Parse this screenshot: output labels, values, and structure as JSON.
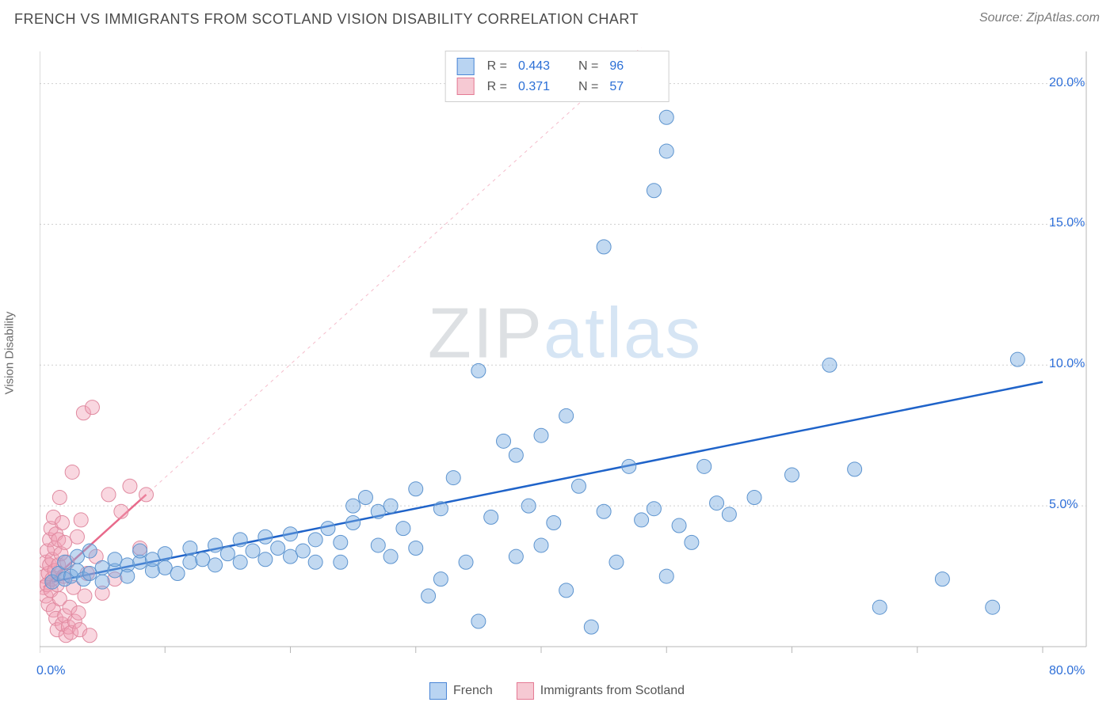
{
  "header": {
    "title": "FRENCH VS IMMIGRANTS FROM SCOTLAND VISION DISABILITY CORRELATION CHART",
    "source": "Source: ZipAtlas.com"
  },
  "axes": {
    "y_label": "Vision Disability",
    "x_min": 0,
    "x_max": 80,
    "y_min": 0,
    "y_max": 21,
    "y_ticks": [
      {
        "val": 5,
        "label": "5.0%"
      },
      {
        "val": 10,
        "label": "10.0%"
      },
      {
        "val": 15,
        "label": "15.0%"
      },
      {
        "val": 20,
        "label": "20.0%"
      }
    ],
    "x_ticks_major": [
      0,
      10,
      20,
      30,
      40,
      50,
      60,
      70,
      80
    ],
    "x_origin_label": "0.0%",
    "x_max_label": "80.0%",
    "grid_color": "#cfcfcf",
    "axis_color": "#b7b7b7",
    "background": "#ffffff"
  },
  "watermark": {
    "z": "Z",
    "ip": "IP",
    "atlas": "atlas"
  },
  "legend_top": {
    "rows": [
      {
        "swatch_fill": "#b9d4f2",
        "swatch_border": "#4a86d6",
        "r_label": "R =",
        "r": "0.443",
        "n_label": "N =",
        "n": "96"
      },
      {
        "swatch_fill": "#f6c9d3",
        "swatch_border": "#e47a94",
        "r_label": "R =",
        "r": "0.371",
        "n_label": "N =",
        "n": "57"
      }
    ]
  },
  "legend_bottom": {
    "items": [
      {
        "swatch_fill": "#b9d4f2",
        "swatch_border": "#4a86d6",
        "label": "French"
      },
      {
        "swatch_fill": "#f6c9d3",
        "swatch_border": "#e47a94",
        "label": "Immigrants from Scotland"
      }
    ]
  },
  "series": {
    "blue": {
      "color_fill": "rgba(120,170,225,0.45)",
      "color_stroke": "#5d94cf",
      "trend_color": "#1f63c9",
      "trend_dash_color": "#1f63c9",
      "trend_x1": 1,
      "trend_y1": 2.3,
      "trend_x2": 80,
      "trend_y2": 9.4,
      "points": [
        [
          1,
          2.3
        ],
        [
          1.5,
          2.6
        ],
        [
          2,
          2.4
        ],
        [
          2,
          3.0
        ],
        [
          2.5,
          2.5
        ],
        [
          3,
          2.7
        ],
        [
          3,
          3.2
        ],
        [
          3.5,
          2.4
        ],
        [
          4,
          2.6
        ],
        [
          4,
          3.4
        ],
        [
          5,
          2.8
        ],
        [
          5,
          2.3
        ],
        [
          6,
          2.7
        ],
        [
          6,
          3.1
        ],
        [
          7,
          2.9
        ],
        [
          7,
          2.5
        ],
        [
          8,
          3.0
        ],
        [
          8,
          3.4
        ],
        [
          9,
          2.7
        ],
        [
          9,
          3.1
        ],
        [
          10,
          2.8
        ],
        [
          10,
          3.3
        ],
        [
          11,
          2.6
        ],
        [
          12,
          3.0
        ],
        [
          12,
          3.5
        ],
        [
          13,
          3.1
        ],
        [
          14,
          2.9
        ],
        [
          14,
          3.6
        ],
        [
          15,
          3.3
        ],
        [
          16,
          3.0
        ],
        [
          16,
          3.8
        ],
        [
          17,
          3.4
        ],
        [
          18,
          3.1
        ],
        [
          18,
          3.9
        ],
        [
          19,
          3.5
        ],
        [
          20,
          3.2
        ],
        [
          20,
          4.0
        ],
        [
          21,
          3.4
        ],
        [
          22,
          3.8
        ],
        [
          22,
          3.0
        ],
        [
          23,
          4.2
        ],
        [
          24,
          3.7
        ],
        [
          24,
          3.0
        ],
        [
          25,
          4.4
        ],
        [
          25,
          5.0
        ],
        [
          26,
          5.3
        ],
        [
          27,
          3.6
        ],
        [
          27,
          4.8
        ],
        [
          28,
          3.2
        ],
        [
          28,
          5.0
        ],
        [
          29,
          4.2
        ],
        [
          30,
          3.5
        ],
        [
          30,
          5.6
        ],
        [
          31,
          1.8
        ],
        [
          32,
          2.4
        ],
        [
          32,
          4.9
        ],
        [
          33,
          6.0
        ],
        [
          34,
          3.0
        ],
        [
          35,
          0.9
        ],
        [
          35,
          9.8
        ],
        [
          36,
          4.6
        ],
        [
          37,
          7.3
        ],
        [
          38,
          3.2
        ],
        [
          38,
          6.8
        ],
        [
          39,
          5.0
        ],
        [
          40,
          3.6
        ],
        [
          40,
          7.5
        ],
        [
          41,
          4.4
        ],
        [
          42,
          2.0
        ],
        [
          42,
          8.2
        ],
        [
          43,
          5.7
        ],
        [
          44,
          0.7
        ],
        [
          45,
          14.2
        ],
        [
          45,
          4.8
        ],
        [
          46,
          3.0
        ],
        [
          47,
          6.4
        ],
        [
          48,
          4.5
        ],
        [
          49,
          16.2
        ],
        [
          49,
          4.9
        ],
        [
          50,
          18.8
        ],
        [
          50,
          17.6
        ],
        [
          50,
          2.5
        ],
        [
          51,
          4.3
        ],
        [
          52,
          3.7
        ],
        [
          53,
          6.4
        ],
        [
          54,
          5.1
        ],
        [
          55,
          4.7
        ],
        [
          57,
          5.3
        ],
        [
          60,
          6.1
        ],
        [
          63,
          10.0
        ],
        [
          65,
          6.3
        ],
        [
          67,
          1.4
        ],
        [
          72,
          2.4
        ],
        [
          76,
          1.4
        ],
        [
          78,
          10.2
        ]
      ]
    },
    "pink": {
      "color_fill": "rgba(240,160,180,0.42)",
      "color_stroke": "#e08aa0",
      "trend_color": "#e86a8b",
      "trend_dash_color": "rgba(232,106,139,0.45)",
      "trend_x1": 0.3,
      "trend_y1": 2.1,
      "trend_x2": 8.5,
      "trend_y2": 5.4,
      "points": [
        [
          0.3,
          2.1
        ],
        [
          0.4,
          2.5
        ],
        [
          0.5,
          1.8
        ],
        [
          0.5,
          3.0
        ],
        [
          0.6,
          2.2
        ],
        [
          0.6,
          3.4
        ],
        [
          0.7,
          2.6
        ],
        [
          0.7,
          1.5
        ],
        [
          0.8,
          2.9
        ],
        [
          0.8,
          3.8
        ],
        [
          0.9,
          2.0
        ],
        [
          0.9,
          4.2
        ],
        [
          1.0,
          2.4
        ],
        [
          1.0,
          3.1
        ],
        [
          1.1,
          1.3
        ],
        [
          1.1,
          4.6
        ],
        [
          1.2,
          2.7
        ],
        [
          1.2,
          3.5
        ],
        [
          1.3,
          1.0
        ],
        [
          1.3,
          4.0
        ],
        [
          1.4,
          2.2
        ],
        [
          1.4,
          0.6
        ],
        [
          1.5,
          3.8
        ],
        [
          1.5,
          2.9
        ],
        [
          1.6,
          5.3
        ],
        [
          1.6,
          1.7
        ],
        [
          1.7,
          3.3
        ],
        [
          1.8,
          0.8
        ],
        [
          1.8,
          4.4
        ],
        [
          1.9,
          2.5
        ],
        [
          2.0,
          3.7
        ],
        [
          2.0,
          1.1
        ],
        [
          2.1,
          0.4
        ],
        [
          2.2,
          3.0
        ],
        [
          2.3,
          0.7
        ],
        [
          2.4,
          1.4
        ],
        [
          2.5,
          0.5
        ],
        [
          2.6,
          6.2
        ],
        [
          2.7,
          2.1
        ],
        [
          2.8,
          0.9
        ],
        [
          3.0,
          3.9
        ],
        [
          3.1,
          1.2
        ],
        [
          3.2,
          0.6
        ],
        [
          3.3,
          4.5
        ],
        [
          3.5,
          8.3
        ],
        [
          3.6,
          1.8
        ],
        [
          3.8,
          2.6
        ],
        [
          4.0,
          0.4
        ],
        [
          4.2,
          8.5
        ],
        [
          4.5,
          3.2
        ],
        [
          5.0,
          1.9
        ],
        [
          5.5,
          5.4
        ],
        [
          6.0,
          2.4
        ],
        [
          6.5,
          4.8
        ],
        [
          7.2,
          5.7
        ],
        [
          8.0,
          3.5
        ],
        [
          8.5,
          5.4
        ]
      ]
    }
  },
  "style": {
    "point_radius": 9,
    "point_stroke_width": 1,
    "trend_width": 2.5,
    "title_fontsize": 18,
    "label_fontsize": 15
  }
}
